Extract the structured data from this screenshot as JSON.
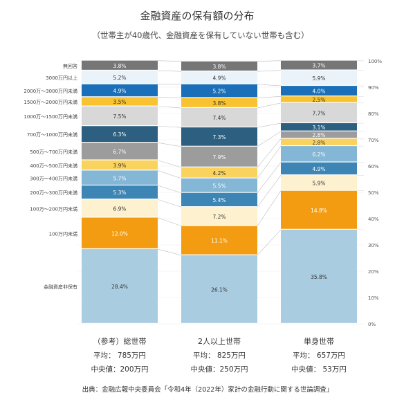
{
  "chart_data": {
    "type": "bar",
    "stacked": true,
    "title": "金融資産の保有額の分布",
    "subtitle": "（世帯主が40歳代、金融資産を保有していない世帯も含む）",
    "source": "出典：金融広報中央委員会「令和4年（2022年）家計の金融行動に関する世論調査」",
    "ylim": [
      0,
      100
    ],
    "yticks": [
      "0%",
      "10%",
      "20%",
      "30%",
      "40%",
      "50%",
      "60%",
      "70%",
      "80%",
      "90%",
      "100%"
    ],
    "grid": true,
    "categories": [
      "金融資産非保有",
      "100万円未満",
      "100万～200万円未満",
      "200万～300万円未満",
      "300万～400万円未満",
      "400万～500万円未満",
      "500万～700万円未満",
      "700万～1000万円未満",
      "1000万～1500万円未満",
      "1500万～2000万円未満",
      "2000万～3000万円未満",
      "3000万円以上",
      "無回答"
    ],
    "colors": [
      "#a9cce1",
      "#f39c12",
      "#fdf1cf",
      "#3d85b4",
      "#84b6d6",
      "#fad35e",
      "#9c9c9c",
      "#2c5f80",
      "#d8d8d8",
      "#f8c230",
      "#1a6fb8",
      "#eaf3fa",
      "#767676"
    ],
    "label_colors": [
      "#333333",
      "#ffffff",
      "#333333",
      "#ffffff",
      "#ffffff",
      "#333333",
      "#ffffff",
      "#ffffff",
      "#333333",
      "#333333",
      "#ffffff",
      "#333333",
      "#ffffff"
    ],
    "series": [
      {
        "name": "（参考）総世帯",
        "mean": "平均： 785万円",
        "median": "中央値：200万円",
        "values": [
          28.4,
          12.0,
          6.9,
          5.3,
          5.7,
          3.9,
          6.7,
          6.3,
          7.5,
          3.5,
          4.9,
          5.2,
          3.8
        ],
        "labels": [
          "28.4%",
          "12.0%",
          "6.9%",
          "5.3%",
          "5.7%",
          "3.9%",
          "6.7%",
          "6.3%",
          "7.5%",
          "3.5%",
          "4.9%",
          "5.2%",
          "3.8%"
        ]
      },
      {
        "name": "2人以上世帯",
        "mean": "平均： 825万円",
        "median": "中央値：250万円",
        "values": [
          26.1,
          11.1,
          7.2,
          5.4,
          5.5,
          4.2,
          7.9,
          7.3,
          7.4,
          3.8,
          5.2,
          4.9,
          3.8
        ],
        "labels": [
          "26.1%",
          "11.1%",
          "7.2%",
          "5.4%",
          "5.5%",
          "4.2%",
          "7.9%",
          "7.3%",
          "7.4%",
          "3.8%",
          "5.2%",
          "4.9%",
          "3.8%"
        ]
      },
      {
        "name": "単身世帯",
        "mean": "平均： 657万円",
        "median": "中央値： 53万円",
        "values": [
          35.8,
          14.8,
          5.9,
          4.9,
          6.2,
          2.8,
          2.8,
          3.1,
          7.7,
          2.5,
          4.0,
          5.9,
          3.7
        ],
        "labels": [
          "35.8%",
          "14.8%",
          "5.9%",
          "4.9%",
          "6.2%",
          "2.8%",
          "2.8%",
          "3.1%",
          "7.7%",
          "2.5%",
          "4.0%",
          "5.9%",
          "3.7%"
        ]
      }
    ]
  }
}
